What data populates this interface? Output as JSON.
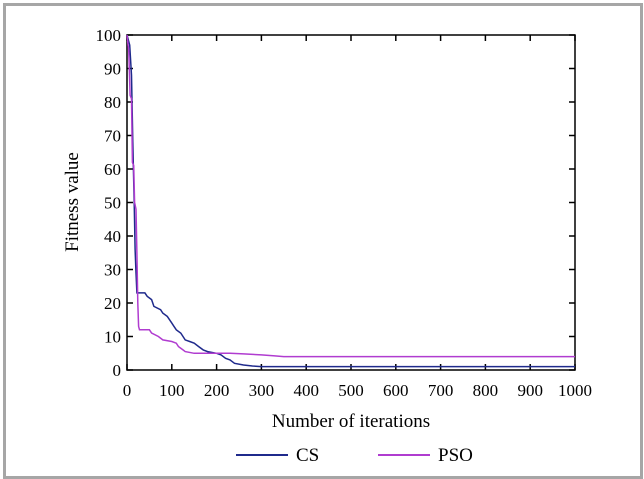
{
  "chart_data": {
    "type": "line",
    "title": "",
    "xlabel": "Number of iterations",
    "ylabel": "Fitness value",
    "xlim": [
      0,
      1000
    ],
    "ylim": [
      0,
      100
    ],
    "xticks": [
      0,
      100,
      200,
      300,
      400,
      500,
      600,
      700,
      800,
      900,
      1000
    ],
    "yticks": [
      0,
      10,
      20,
      30,
      40,
      50,
      60,
      70,
      80,
      90,
      100
    ],
    "grid": false,
    "legend_position": "bottom",
    "series": [
      {
        "name": "CS",
        "color": "#1f2a8c",
        "points": [
          [
            0,
            100
          ],
          [
            6,
            97
          ],
          [
            10,
            88
          ],
          [
            13,
            68
          ],
          [
            16,
            50
          ],
          [
            18,
            36
          ],
          [
            20,
            29
          ],
          [
            22,
            23
          ],
          [
            40,
            23
          ],
          [
            45,
            22
          ],
          [
            55,
            21
          ],
          [
            60,
            19
          ],
          [
            75,
            18
          ],
          [
            80,
            17
          ],
          [
            90,
            16
          ],
          [
            95,
            15
          ],
          [
            100,
            14
          ],
          [
            105,
            13
          ],
          [
            110,
            12
          ],
          [
            120,
            11
          ],
          [
            125,
            10
          ],
          [
            130,
            9
          ],
          [
            140,
            8.5
          ],
          [
            150,
            8
          ],
          [
            160,
            7
          ],
          [
            170,
            6
          ],
          [
            180,
            5.5
          ],
          [
            200,
            5
          ],
          [
            210,
            4.5
          ],
          [
            220,
            3.5
          ],
          [
            230,
            3
          ],
          [
            240,
            2
          ],
          [
            260,
            1.5
          ],
          [
            280,
            1.2
          ],
          [
            300,
            1
          ],
          [
            1000,
            1
          ]
        ]
      },
      {
        "name": "PSO",
        "color": "#b03cd0",
        "points": [
          [
            0,
            100
          ],
          [
            4,
            95
          ],
          [
            7,
            82
          ],
          [
            10,
            81
          ],
          [
            12,
            62
          ],
          [
            15,
            61
          ],
          [
            17,
            50
          ],
          [
            20,
            48
          ],
          [
            22,
            35
          ],
          [
            24,
            20
          ],
          [
            26,
            13
          ],
          [
            28,
            12
          ],
          [
            50,
            12
          ],
          [
            55,
            11
          ],
          [
            70,
            10
          ],
          [
            80,
            9
          ],
          [
            100,
            8.5
          ],
          [
            110,
            8
          ],
          [
            115,
            7
          ],
          [
            125,
            6
          ],
          [
            130,
            5.5
          ],
          [
            150,
            5
          ],
          [
            200,
            5
          ],
          [
            230,
            5
          ],
          [
            260,
            4.8
          ],
          [
            300,
            4.5
          ],
          [
            330,
            4.2
          ],
          [
            350,
            4
          ],
          [
            1000,
            4
          ]
        ]
      }
    ]
  }
}
